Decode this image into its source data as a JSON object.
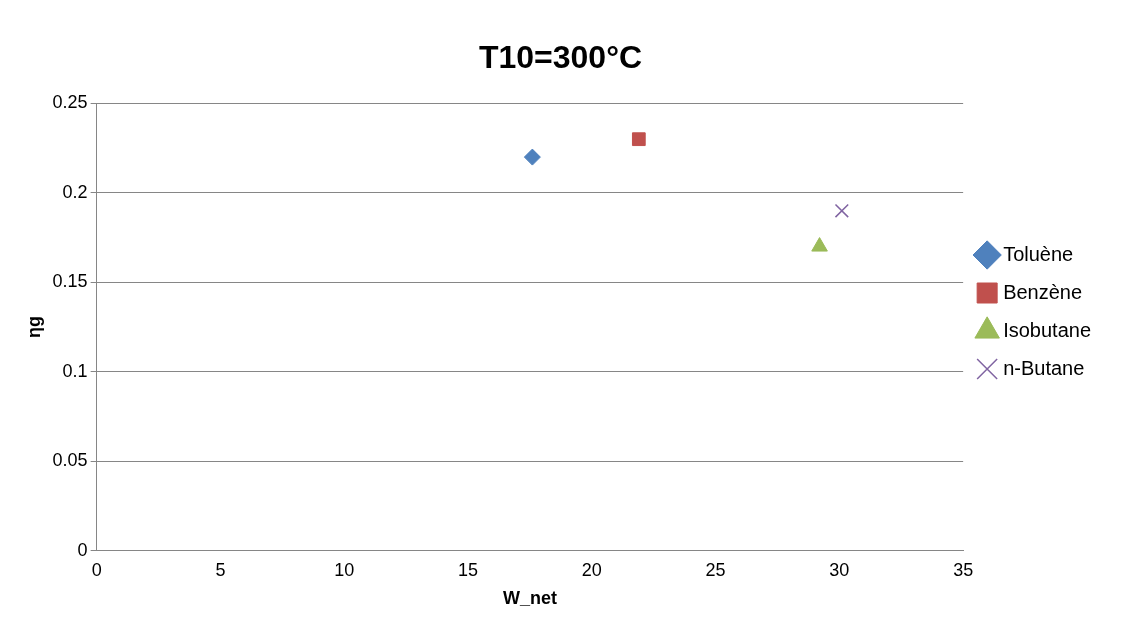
{
  "chart_data": {
    "type": "scatter",
    "title": "T10=300°C",
    "xlabel": "W_net",
    "ylabel": "ηg",
    "xlim": [
      0,
      35
    ],
    "xticks": [
      0,
      5,
      10,
      15,
      20,
      25,
      30,
      35
    ],
    "ylim": [
      0,
      0.25
    ],
    "yticks": [
      0,
      0.05,
      0.1,
      0.15,
      0.2,
      0.25
    ],
    "grid": "y",
    "legend": "right",
    "series": [
      {
        "name": "Toluène",
        "color": "#4f81bd",
        "marker": "diamond",
        "x": [
          17.6
        ],
        "values": [
          0.22
        ]
      },
      {
        "name": "Benzène",
        "color": "#c0504d",
        "marker": "square",
        "x": [
          21.9
        ],
        "values": [
          0.23
        ]
      },
      {
        "name": "Isobutane",
        "color": "#9bbb59",
        "marker": "triangle",
        "x": [
          29.2
        ],
        "values": [
          0.17
        ]
      },
      {
        "name": "n-Butane",
        "color": "#8064a2",
        "marker": "cross",
        "x": [
          30.1
        ],
        "values": [
          0.19
        ]
      }
    ]
  }
}
